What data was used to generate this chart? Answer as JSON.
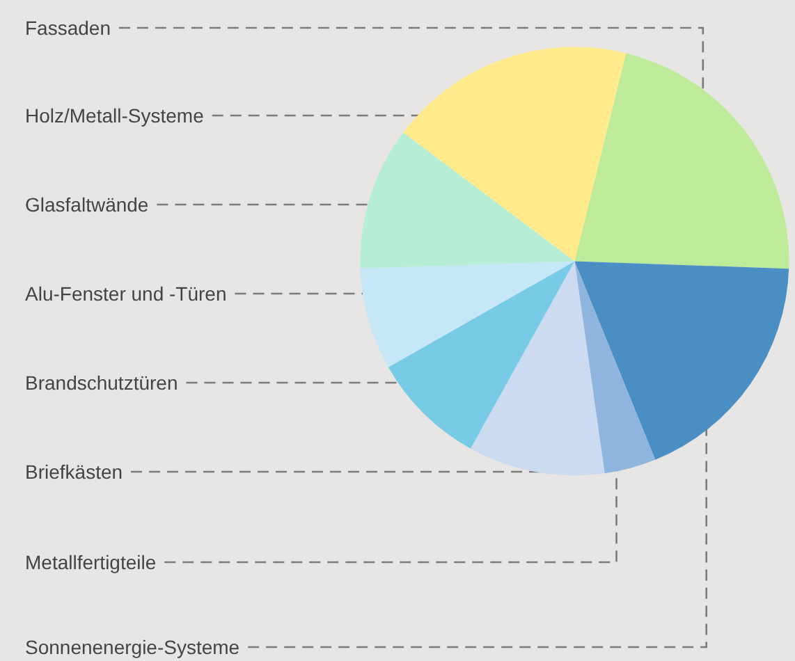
{
  "chart_data": {
    "type": "pie",
    "categories": [
      "Fassaden",
      "Sonnenenergie-Systeme",
      "Metallfertigteile",
      "Briefkästen",
      "Brandschutztüren",
      "Alu-Fenster und -Türen",
      "Glasfaltwände",
      "Holz/Metall-Systeme"
    ],
    "values": [
      21.7,
      18.3,
      3.9,
      10.3,
      8.7,
      7.7,
      10.8,
      18.6
    ],
    "colors": [
      "#bdeb9a",
      "#4a8fc4",
      "#8fb4de",
      "#cddbf1",
      "#78cbe6",
      "#c6e8f6",
      "#b6edd5",
      "#ffeb8b"
    ]
  }
}
